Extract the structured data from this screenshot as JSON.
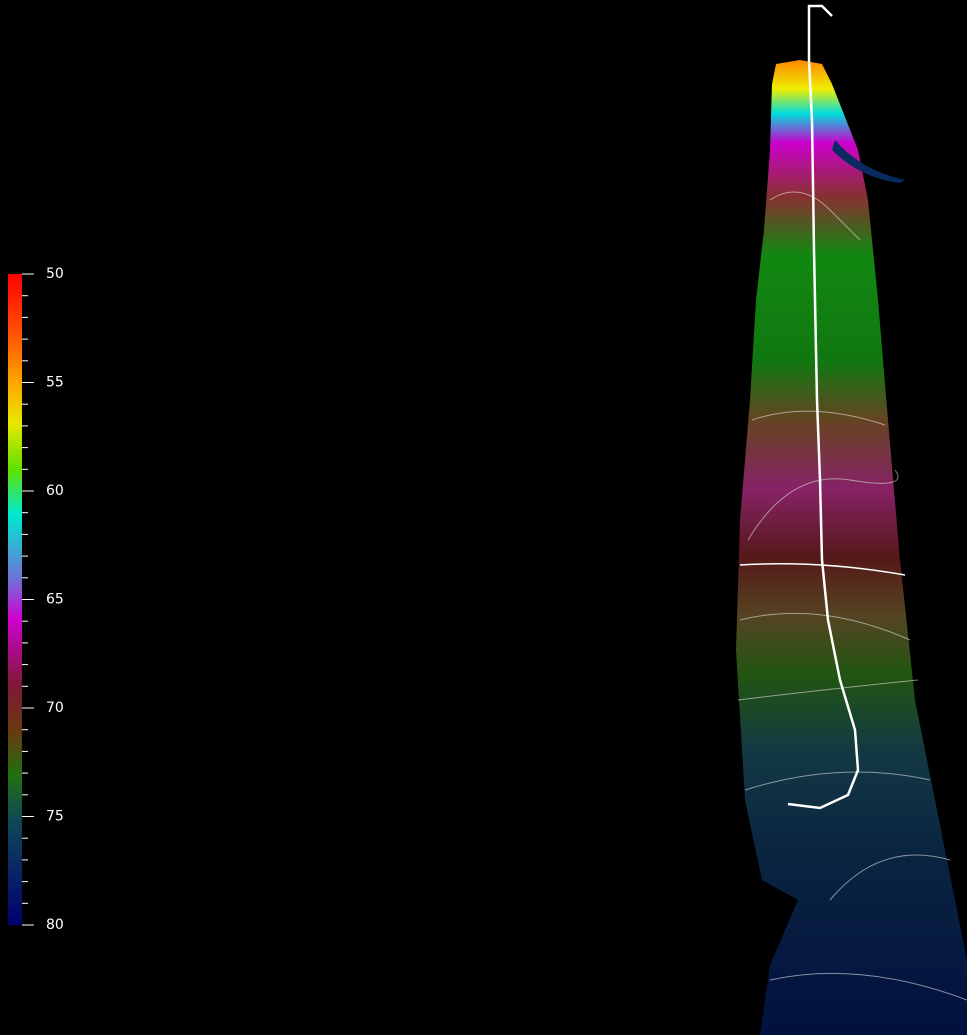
{
  "colorbar": {
    "range": [
      50,
      80
    ],
    "ticks": [
      50,
      55,
      60,
      65,
      70,
      75,
      80
    ]
  }
}
